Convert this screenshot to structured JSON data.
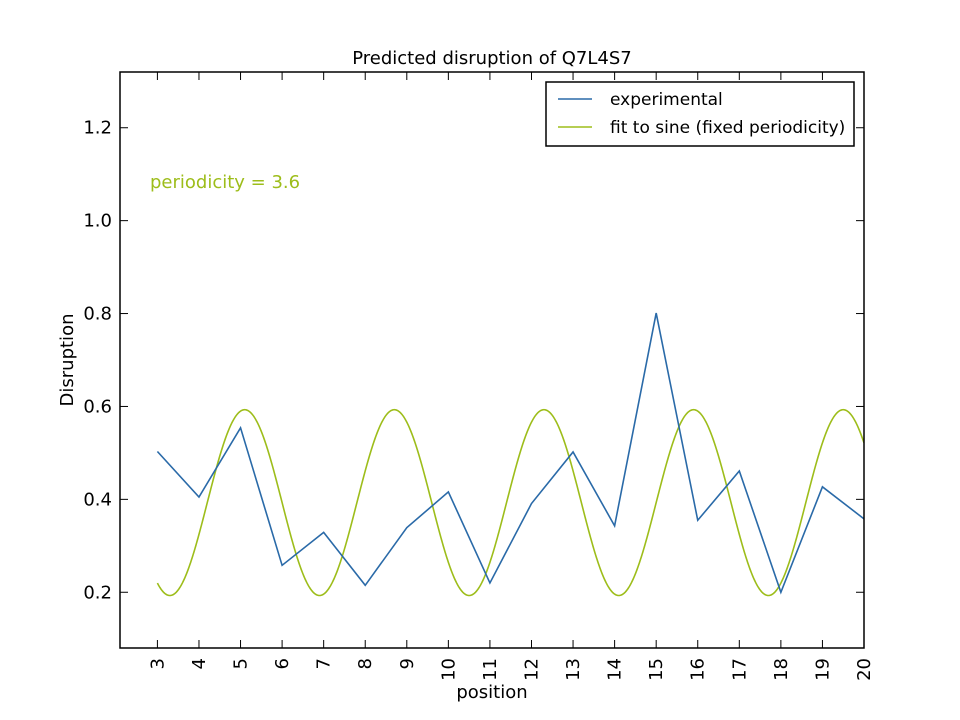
{
  "chart_data": {
    "type": "line",
    "title": "Predicted disruption of Q7L4S7",
    "xlabel": "position",
    "ylabel": "Disruption",
    "xlim": [
      2.1,
      20
    ],
    "ylim": [
      0.08,
      1.32
    ],
    "x_ticks": [
      "3",
      "4",
      "5",
      "6",
      "7",
      "8",
      "9",
      "10",
      "11",
      "12",
      "13",
      "14",
      "15",
      "16",
      "17",
      "18",
      "19",
      "20"
    ],
    "y_ticks": [
      "0.2",
      "0.4",
      "0.6",
      "0.8",
      "1.0",
      "1.2"
    ],
    "grid": false,
    "legend_position": "top-right",
    "annotation": {
      "text": "periodicity = 3.6",
      "color": "#9dbd1a"
    },
    "series": [
      {
        "name": "experimental",
        "color": "#2a6aa8",
        "x": [
          3,
          4,
          5,
          6,
          7,
          8,
          9,
          10,
          11,
          12,
          13,
          14,
          15,
          16,
          17,
          18,
          19,
          20
        ],
        "values": [
          0.503,
          0.405,
          0.554,
          0.258,
          0.329,
          0.215,
          0.339,
          0.416,
          0.22,
          0.391,
          0.502,
          0.343,
          0.801,
          0.355,
          0.461,
          0.2,
          0.427,
          0.358
        ]
      },
      {
        "name": "fit to sine (fixed periodicity)",
        "color": "#9dbd1a",
        "kind": "sine",
        "periodicity": 3.6,
        "center": 0.393,
        "amplitude": 0.2,
        "peak_x": 5.1,
        "x_range": [
          3,
          20
        ]
      }
    ]
  }
}
